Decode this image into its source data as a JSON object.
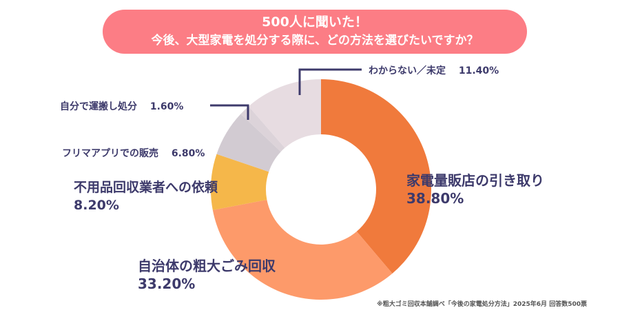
{
  "chart_data": {
    "type": "pie",
    "donut": true,
    "title": "500人に聞いた！",
    "subtitle": "今後、大型家電を処分する際に、どの方法を選びたいですか？",
    "categories": [
      "家電量販店の引き取り",
      "自治体の粗大ごみ回収",
      "不用品回収業者への依頼",
      "フリマアプリでの販売",
      "自分で運搬し処分",
      "わからない／未定"
    ],
    "values": [
      38.8,
      33.2,
      8.2,
      6.8,
      1.6,
      11.4
    ],
    "value_labels": [
      "38.80%",
      "33.20%",
      "8.20%",
      "6.80%",
      "1.60%",
      "11.40%"
    ],
    "colors": [
      "#f07a3c",
      "#fd9a6a",
      "#f5b74a",
      "#d2cbd2",
      "#dcd3d9",
      "#e7dce1"
    ],
    "legend": "none",
    "note": "※粗大ゴミ回収本舗調べ「今後の家電処分方法」2025年6月 回答数500票"
  }
}
